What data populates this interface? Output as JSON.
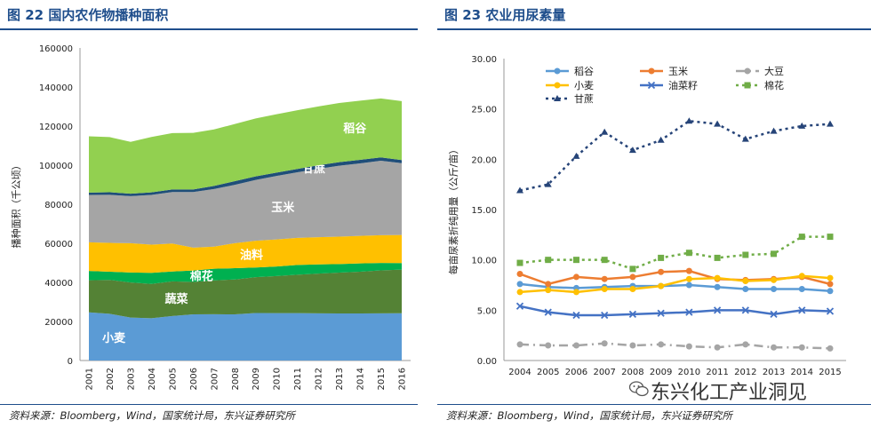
{
  "left_panel": {
    "title": "图 22 国内农作物播种面积",
    "source": "资料来源：Bloomberg，Wind，国家统计局，东兴证券研究所"
  },
  "right_panel": {
    "title": "图 23 农业用尿素量",
    "source": "资料来源：Bloomberg，Wind，国家统计局，东兴证券研究所"
  },
  "watermark": "东兴化工产业洞见",
  "chart_data": [
    {
      "type": "area",
      "stacked": true,
      "ylabel": "播种面积（千公顷）",
      "ylim": [
        0,
        160000
      ],
      "yticks": [
        "0",
        "20000",
        "40000",
        "60000",
        "80000",
        "100000",
        "120000",
        "140000",
        "160000"
      ],
      "x": [
        "2001",
        "2002",
        "2003",
        "2004",
        "2005",
        "2006",
        "2007",
        "2008",
        "2009",
        "2010",
        "2011",
        "2012",
        "2013",
        "2014",
        "2015",
        "2016"
      ],
      "series": [
        {
          "name": "小麦",
          "color": "#5b9bd5",
          "values": [
            24664,
            23908,
            21997,
            21626,
            22793,
            23613,
            23721,
            23617,
            24291,
            24257,
            24270,
            24139,
            24117,
            24069,
            24141,
            24187
          ]
        },
        {
          "name": "蔬菜",
          "color": "#548235",
          "values": [
            16402,
            17353,
            17954,
            17560,
            17721,
            16639,
            17329,
            17876,
            18390,
            19000,
            19639,
            20353,
            20899,
            21405,
            21999,
            22328
          ]
        },
        {
          "name": "棉花",
          "color": "#00b050",
          "values": [
            4810,
            4184,
            5111,
            5693,
            5062,
            5816,
            5926,
            5754,
            4952,
            4849,
            5038,
            4688,
            4346,
            4222,
            3797,
            3345
          ]
        },
        {
          "name": "油料",
          "color": "#ffc000",
          "values": [
            14631,
            14766,
            14990,
            14431,
            14318,
            11738,
            11316,
            12825,
            13652,
            13890,
            13855,
            13937,
            14031,
            14083,
            14200,
            14400
          ]
        },
        {
          "name": "玉米",
          "color": "#a5a5a5",
          "values": [
            24282,
            24634,
            24068,
            25446,
            26358,
            28463,
            29478,
            29864,
            31183,
            32500,
            33542,
            35030,
            36318,
            37123,
            38117,
            36768
          ]
        },
        {
          "name": "甘蔗",
          "color": "#1f4e79",
          "values": [
            1200,
            1300,
            1300,
            1300,
            1300,
            1300,
            1600,
            1900,
            1800,
            1700,
            1700,
            1800,
            1800,
            1800,
            1700,
            1600
          ]
        },
        {
          "name": "稻谷",
          "color": "#92d050",
          "values": [
            28812,
            28202,
            26508,
            28379,
            28847,
            28938,
            28919,
            29241,
            29627,
            29873,
            30057,
            30137,
            30312,
            30310,
            30216,
            30178
          ]
        }
      ]
    },
    {
      "type": "line",
      "ylabel": "每亩尿素折纯用量（公斤/亩）",
      "ylim": [
        0,
        30
      ],
      "yticks": [
        "0.00",
        "5.00",
        "10.00",
        "15.00",
        "20.00",
        "25.00",
        "30.00"
      ],
      "x": [
        "2004",
        "2005",
        "2006",
        "2007",
        "2008",
        "2009",
        "2010",
        "2011",
        "2012",
        "2013",
        "2014",
        "2015"
      ],
      "series": [
        {
          "name": "稻谷",
          "color": "#5b9bd5",
          "dash": "",
          "marker": "circle",
          "values": [
            7.6,
            7.3,
            7.2,
            7.3,
            7.4,
            7.4,
            7.5,
            7.3,
            7.1,
            7.1,
            7.1,
            6.9
          ]
        },
        {
          "name": "玉米",
          "color": "#ed7d31",
          "dash": "",
          "marker": "circle",
          "values": [
            8.6,
            7.6,
            8.3,
            8.1,
            8.3,
            8.8,
            8.9,
            8.1,
            8.0,
            8.1,
            8.3,
            7.6
          ]
        },
        {
          "name": "大豆",
          "color": "#a5a5a5",
          "dash": "10,5,2,5",
          "marker": "circle",
          "values": [
            1.6,
            1.5,
            1.5,
            1.7,
            1.5,
            1.6,
            1.4,
            1.3,
            1.6,
            1.3,
            1.3,
            1.2
          ]
        },
        {
          "name": "小麦",
          "color": "#ffc000",
          "dash": "",
          "marker": "circle",
          "values": [
            6.8,
            7.0,
            6.8,
            7.1,
            7.1,
            7.4,
            8.1,
            8.2,
            7.9,
            8.0,
            8.4,
            8.2
          ]
        },
        {
          "name": "油菜籽",
          "color": "#4472c4",
          "dash": "",
          "marker": "x",
          "values": [
            5.4,
            4.8,
            4.5,
            4.5,
            4.6,
            4.7,
            4.8,
            5.0,
            5.0,
            4.6,
            5.0,
            4.9
          ]
        },
        {
          "name": "棉花",
          "color": "#70ad47",
          "dash": "3,4",
          "marker": "square",
          "values": [
            9.7,
            10.0,
            10.0,
            10.0,
            9.1,
            10.2,
            10.7,
            10.2,
            10.5,
            10.6,
            12.3,
            12.3
          ]
        },
        {
          "name": "甘蔗",
          "color": "#264478",
          "dash": "3,4",
          "marker": "triangle",
          "values": [
            16.9,
            17.5,
            20.3,
            22.7,
            20.9,
            21.9,
            23.8,
            23.5,
            22.0,
            22.8,
            23.3,
            23.5
          ]
        }
      ],
      "legend_position": "top"
    }
  ]
}
